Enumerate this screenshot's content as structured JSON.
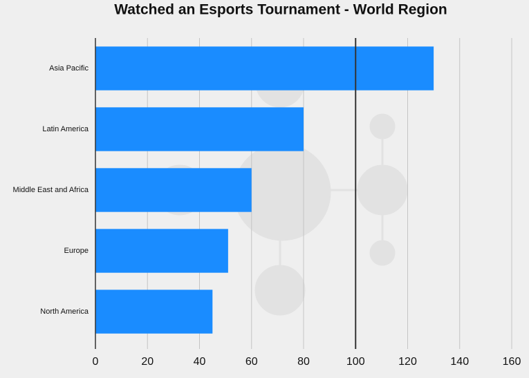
{
  "chart_data": {
    "type": "bar",
    "orientation": "horizontal",
    "title": "Watched an Esports Tournament - World Region",
    "categories": [
      "Asia Pacific",
      "Latin America",
      "Middle East and Africa",
      "Europe",
      "North America"
    ],
    "values": [
      130,
      80,
      60,
      51,
      45
    ],
    "color": "#1a8cff",
    "xlim": [
      0,
      160
    ],
    "xticks": [
      0,
      20,
      40,
      60,
      80,
      100,
      120,
      140,
      160
    ],
    "grid": true,
    "reference_line": 100
  }
}
